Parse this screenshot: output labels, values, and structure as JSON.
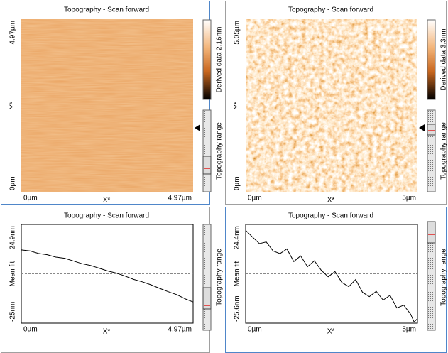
{
  "panels": [
    {
      "title": "Topography - Scan forward",
      "y_top": "4.97µm",
      "y_mid": "Y*",
      "y_bottom": "0µm",
      "x_left": "0µm",
      "x_mid": "X*",
      "x_right": "4.97µm",
      "colorbar_label": "Derived data 2.16nm",
      "range_label": "Topography range"
    },
    {
      "title": "Topography - Scan forward",
      "y_top": "5.05µm",
      "y_mid": "Y*",
      "y_bottom": "0µm",
      "x_left": "0µm",
      "x_mid": "X*",
      "x_right": "5µm",
      "colorbar_label": "Derived data 3.3nm",
      "range_label": "Topography range"
    },
    {
      "title": "Topography - Scan forward",
      "y_top": "24.9nm",
      "y_mid": "Mean fit",
      "y_bottom": "-25nm",
      "x_left": "0µm",
      "x_mid": "X*",
      "x_right": "4.97µm",
      "range_label": "Topography range",
      "profile": {
        "x": [
          0,
          0.25,
          0.5,
          0.75,
          1,
          1.25,
          1.5,
          1.75,
          2,
          2.25,
          2.5,
          2.75,
          3,
          3.25,
          3.5,
          3.75,
          4,
          4.25,
          4.5,
          4.75,
          4.97
        ],
        "values": [
          12,
          11.5,
          10.2,
          9.6,
          8.4,
          7.8,
          6.5,
          5.1,
          4.2,
          2.8,
          1.4,
          0.3,
          -1.2,
          -2.9,
          -4.1,
          -5.6,
          -7.4,
          -9.1,
          -10.6,
          -12.8,
          -14.3
        ],
        "xlim": [
          0,
          4.97
        ],
        "ylim": [
          -25,
          24.9
        ]
      }
    },
    {
      "title": "Topography - Scan forward",
      "y_top": "24.4nm",
      "y_mid": "Mean fit",
      "y_bottom": "-25.6nm",
      "x_left": "0µm",
      "x_mid": "X*",
      "x_right": "5µm",
      "range_label": "Topography range",
      "profile": {
        "x": [
          0,
          0.2,
          0.4,
          0.6,
          0.8,
          1,
          1.2,
          1.4,
          1.6,
          1.8,
          2,
          2.2,
          2.4,
          2.6,
          2.8,
          3,
          3.2,
          3.4,
          3.6,
          3.8,
          4,
          4.2,
          4.4,
          4.6,
          4.8,
          4.9,
          5
        ],
        "values": [
          21.4,
          18,
          14.7,
          15.5,
          11,
          9.6,
          12,
          5.6,
          8.5,
          3,
          6,
          1.2,
          -2.1,
          0.5,
          -5,
          -7.1,
          -3.5,
          -10,
          -12.2,
          -9.5,
          -13.9,
          -11.5,
          -17.9,
          -16.5,
          -21,
          -25,
          -23.3
        ],
        "xlim": [
          0,
          5
        ],
        "ylim": [
          -25.6,
          24.4
        ]
      }
    }
  ]
}
